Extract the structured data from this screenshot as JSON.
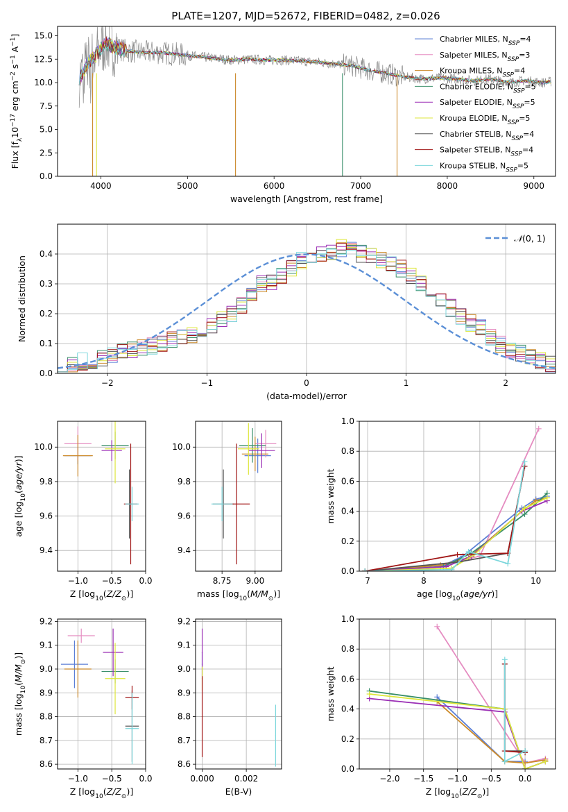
{
  "title": "PLATE=1207, MJD=52672, FIBERID=0482, z=0.026",
  "colors": {
    "Chabrier MILES": "#5b7fd6",
    "Salpeter MILES": "#e58cc1",
    "Kroupa MILES": "#cc8a2a",
    "Chabrier ELODIE": "#3a8f6a",
    "Salpeter ELODIE": "#9b2fb5",
    "Kroupa ELODIE": "#dde63a",
    "Chabrier STELIB": "#555555",
    "Salpeter STELIB": "#a01515",
    "Kroupa STELIB": "#7dd7dc",
    "Data": "#888888",
    "Normal": "#5b8fd6"
  },
  "chart_data": [
    {
      "id": "spectrum",
      "type": "line",
      "xlabel": "wavelength [Angstrom, rest frame]",
      "ylabel": "Flux [f_λ 10^-17 erg cm^-2 s^-1 A^-1]",
      "xlim": [
        3500,
        9250
      ],
      "ylim": [
        0,
        16
      ],
      "xticks": [
        4000,
        5000,
        6000,
        7000,
        8000,
        9000
      ],
      "yticks": [
        0.0,
        2.5,
        5.0,
        7.5,
        10.0,
        12.5,
        15.0
      ],
      "x": [
        3750,
        3850,
        3950,
        4050,
        4150,
        4300,
        4500,
        4700,
        4900,
        5100,
        5300,
        5500,
        5700,
        5900,
        6100,
        6300,
        6500,
        6700,
        6900,
        7100,
        7300,
        7500,
        7700,
        7900,
        8100,
        8300,
        8500,
        8700,
        8900,
        9100,
        9200
      ],
      "model_y": [
        10.5,
        12.0,
        13.0,
        14.2,
        13.8,
        13.4,
        13.2,
        13.2,
        13.0,
        12.8,
        12.6,
        12.4,
        12.5,
        12.4,
        12.4,
        12.3,
        12.2,
        12.0,
        11.8,
        11.3,
        11.0,
        10.6,
        10.4,
        10.5,
        10.4,
        10.2,
        10.4,
        10.0,
        10.2,
        10.0,
        10.1
      ],
      "legend": [
        {
          "name": "Chabrier MILES, N",
          "sub": "SSP",
          "tail": "=4"
        },
        {
          "name": "Salpeter MILES, N",
          "sub": "SSP",
          "tail": "=3"
        },
        {
          "name": "Kroupa MILES, N",
          "sub": "SSP",
          "tail": "=4"
        },
        {
          "name": "Chabrier ELODIE, N",
          "sub": "SSP",
          "tail": "=5"
        },
        {
          "name": "Salpeter ELODIE, N",
          "sub": "SSP",
          "tail": "=5"
        },
        {
          "name": "Kroupa ELODIE, N",
          "sub": "SSP",
          "tail": "=5"
        },
        {
          "name": "Chabrier STELIB, N",
          "sub": "SSP",
          "tail": "=4"
        },
        {
          "name": "Salpeter STELIB, N",
          "sub": "SSP",
          "tail": "=4"
        },
        {
          "name": "Kroupa STELIB, N",
          "sub": "SSP",
          "tail": "=5"
        }
      ]
    },
    {
      "id": "residuals",
      "type": "bar",
      "xlabel": "(data-model)/error",
      "ylabel": "Normed distribution",
      "xlim": [
        -2.5,
        2.5
      ],
      "ylim": [
        0,
        0.5
      ],
      "xticks": [
        -2,
        -1,
        0,
        1,
        2
      ],
      "yticks": [
        0.0,
        0.1,
        0.2,
        0.3,
        0.4
      ],
      "bin_width": 0.1,
      "bin_start": -2.5,
      "normal_label": "N(0,1)",
      "values": [
        0.02,
        0.03,
        0.04,
        0.04,
        0.05,
        0.06,
        0.07,
        0.08,
        0.09,
        0.09,
        0.1,
        0.11,
        0.12,
        0.13,
        0.14,
        0.16,
        0.18,
        0.2,
        0.23,
        0.27,
        0.3,
        0.31,
        0.33,
        0.35,
        0.38,
        0.39,
        0.4,
        0.41,
        0.42,
        0.42,
        0.4,
        0.39,
        0.38,
        0.37,
        0.35,
        0.33,
        0.3,
        0.27,
        0.25,
        0.22,
        0.19,
        0.17,
        0.15,
        0.12,
        0.1,
        0.08,
        0.07,
        0.06,
        0.04,
        0.03
      ]
    },
    {
      "id": "age_vs_Z",
      "type": "scatter",
      "xlabel": "Z [log10(Z/Z⊙)]",
      "ylabel": "age [log10(age/yr)]",
      "xlim": [
        -1.3,
        0.0
      ],
      "ylim": [
        9.28,
        10.15
      ],
      "xticks": [
        -1.0,
        -0.5,
        0.0
      ],
      "yticks": [
        9.4,
        9.6,
        9.8,
        10.0
      ],
      "points": [
        {
          "s": "Chabrier MILES",
          "x": -1.0,
          "xe": 0.2,
          "y": 9.95,
          "ye": 0.05
        },
        {
          "s": "Salpeter MILES",
          "x": -1.0,
          "xe": 0.2,
          "y": 10.02,
          "ye": 0.1
        },
        {
          "s": "Kroupa MILES",
          "x": -1.0,
          "xe": 0.22,
          "y": 9.95,
          "ye": 0.12
        },
        {
          "s": "Chabrier ELODIE",
          "x": -0.45,
          "xe": 0.2,
          "y": 10.01,
          "ye": 0.08
        },
        {
          "s": "Salpeter ELODIE",
          "x": -0.5,
          "xe": 0.15,
          "y": 9.98,
          "ye": 0.06
        },
        {
          "s": "Kroupa ELODIE",
          "x": -0.45,
          "xe": 0.15,
          "y": 9.99,
          "ye": 0.2
        },
        {
          "s": "Chabrier STELIB",
          "x": -0.24,
          "xe": 0.05,
          "y": 9.67,
          "ye": 0.2
        },
        {
          "s": "Salpeter STELIB",
          "x": -0.22,
          "xe": 0.1,
          "y": 9.67,
          "ye": 0.35
        },
        {
          "s": "Kroupa STELIB",
          "x": -0.2,
          "xe": 0.1,
          "y": 9.67,
          "ye": 0.1
        }
      ]
    },
    {
      "id": "age_vs_mass",
      "type": "scatter",
      "xlabel": "mass [log10(M/M⊙)]",
      "ylabel": "",
      "xlim": [
        8.55,
        9.2
      ],
      "ylim": [
        9.28,
        10.15
      ],
      "xticks": [
        8.75,
        9.0
      ],
      "yticks": [
        9.4,
        9.6,
        9.8,
        10.0
      ],
      "points": [
        {
          "s": "Chabrier MILES",
          "x": 9.02,
          "xe": 0.1,
          "y": 9.95,
          "ye": 0.1
        },
        {
          "s": "Salpeter MILES",
          "x": 9.08,
          "xe": 0.08,
          "y": 10.02,
          "ye": 0.08
        },
        {
          "s": "Kroupa MILES",
          "x": 9.0,
          "xe": 0.1,
          "y": 9.96,
          "ye": 0.1
        },
        {
          "s": "Chabrier ELODIE",
          "x": 8.98,
          "xe": 0.1,
          "y": 10.01,
          "ye": 0.1
        },
        {
          "s": "Salpeter ELODIE",
          "x": 9.05,
          "xe": 0.1,
          "y": 9.98,
          "ye": 0.1
        },
        {
          "s": "Kroupa ELODIE",
          "x": 8.95,
          "xe": 0.08,
          "y": 9.99,
          "ye": 0.15
        },
        {
          "s": "Chabrier STELIB",
          "x": 8.76,
          "xe": 0.08,
          "y": 9.67,
          "ye": 0.2
        },
        {
          "s": "Salpeter STELIB",
          "x": 8.86,
          "xe": 0.1,
          "y": 9.67,
          "ye": 0.35
        },
        {
          "s": "Kroupa STELIB",
          "x": 8.75,
          "xe": 0.08,
          "y": 9.67,
          "ye": 0.1
        }
      ]
    },
    {
      "id": "mass_weight_vs_age",
      "type": "line",
      "xlabel": "age [log10(age/yr)]",
      "ylabel": "mass weight",
      "xlim": [
        6.85,
        10.35
      ],
      "ylim": [
        0,
        1
      ],
      "xticks": [
        7,
        8,
        9,
        10
      ],
      "yticks": [
        0.0,
        0.2,
        0.4,
        0.6,
        0.8,
        1.0
      ],
      "series": [
        {
          "s": "Chabrier MILES",
          "x": [
            6.95,
            8.3,
            8.7,
            9.75,
            10.0,
            10.2
          ],
          "y": [
            0.0,
            0.03,
            0.1,
            0.42,
            0.48,
            0.5
          ]
        },
        {
          "s": "Salpeter MILES",
          "x": [
            6.95,
            8.3,
            9.0,
            10.05
          ],
          "y": [
            0.0,
            0.04,
            0.1,
            0.95
          ]
        },
        {
          "s": "Kroupa MILES",
          "x": [
            6.95,
            8.3,
            8.8,
            9.75,
            10.0,
            10.2
          ],
          "y": [
            0.0,
            0.04,
            0.09,
            0.4,
            0.47,
            0.49
          ]
        },
        {
          "s": "Chabrier ELODIE",
          "x": [
            6.95,
            8.35,
            8.85,
            9.8,
            10.2
          ],
          "y": [
            0.0,
            0.03,
            0.12,
            0.38,
            0.52
          ]
        },
        {
          "s": "Salpeter ELODIE",
          "x": [
            6.95,
            8.4,
            8.85,
            9.75,
            10.2
          ],
          "y": [
            0.0,
            0.03,
            0.1,
            0.4,
            0.47
          ]
        },
        {
          "s": "Kroupa ELODIE",
          "x": [
            6.95,
            8.5,
            8.9,
            9.8,
            10.2
          ],
          "y": [
            0.0,
            0.02,
            0.11,
            0.42,
            0.49
          ]
        },
        {
          "s": "Chabrier STELIB",
          "x": [
            6.95,
            8.6,
            9.5,
            9.8
          ],
          "y": [
            0.0,
            0.06,
            0.12,
            0.7
          ]
        },
        {
          "s": "Salpeter STELIB",
          "x": [
            6.95,
            8.6,
            9.5,
            9.8
          ],
          "y": [
            0.0,
            0.11,
            0.12,
            0.7
          ]
        },
        {
          "s": "Kroupa STELIB",
          "x": [
            6.95,
            8.5,
            8.8,
            9.5,
            9.8
          ],
          "y": [
            0.0,
            0.01,
            0.13,
            0.05,
            0.73
          ]
        }
      ]
    },
    {
      "id": "mass_vs_Z",
      "type": "scatter",
      "xlabel": "Z [log10(Z/Z⊙)]",
      "ylabel": "mass [log10(M/M⊙)]",
      "xlim": [
        -1.3,
        0.0
      ],
      "ylim": [
        8.58,
        9.21
      ],
      "xticks": [
        -1.0,
        -0.5,
        0.0
      ],
      "yticks": [
        8.6,
        8.7,
        8.8,
        8.9,
        9.0,
        9.1,
        9.2
      ],
      "points": [
        {
          "s": "Chabrier MILES",
          "x": -1.05,
          "xe": 0.2,
          "y": 9.02,
          "ye": 0.1
        },
        {
          "s": "Salpeter MILES",
          "x": -0.95,
          "xe": 0.2,
          "y": 9.14,
          "ye": 0.03
        },
        {
          "s": "Kroupa MILES",
          "x": -1.0,
          "xe": 0.2,
          "y": 9.0,
          "ye": 0.12
        },
        {
          "s": "Chabrier ELODIE",
          "x": -0.45,
          "xe": 0.2,
          "y": 8.99,
          "ye": 0.05
        },
        {
          "s": "Salpeter ELODIE",
          "x": -0.48,
          "xe": 0.15,
          "y": 9.07,
          "ye": 0.1
        },
        {
          "s": "Kroupa ELODIE",
          "x": -0.45,
          "xe": 0.15,
          "y": 8.96,
          "ye": 0.15
        },
        {
          "s": "Chabrier STELIB",
          "x": -0.2,
          "xe": 0.1,
          "y": 8.76,
          "ye": 0.15
        },
        {
          "s": "Salpeter STELIB",
          "x": -0.2,
          "xe": 0.1,
          "y": 8.88,
          "ye": 0.05
        },
        {
          "s": "Kroupa STELIB",
          "x": -0.2,
          "xe": 0.1,
          "y": 8.75,
          "ye": 0.15
        }
      ]
    },
    {
      "id": "mass_vs_ebv",
      "type": "scatter",
      "xlabel": "E(B-V)",
      "ylabel": "",
      "xlim": [
        -0.0003,
        0.0036
      ],
      "ylim": [
        8.58,
        9.21
      ],
      "xticks": [
        0.0,
        0.002
      ],
      "xtick_labels": [
        "0.000",
        "0.002"
      ],
      "yticks": [
        8.6,
        8.7,
        8.8,
        8.9,
        9.0,
        9.1,
        9.2
      ],
      "points": [
        {
          "s": "Chabrier MILES",
          "x": 0.0,
          "xe": 2e-05,
          "y": 9.02,
          "ye": 0.05
        },
        {
          "s": "Salpeter ELODIE",
          "x": 0.0,
          "xe": 2e-05,
          "y": 9.07,
          "ye": 0.1
        },
        {
          "s": "Kroupa ELODIE",
          "x": 0.0,
          "xe": 2e-05,
          "y": 8.96,
          "ye": 0.05
        },
        {
          "s": "Salpeter STELIB",
          "x": 0.0,
          "xe": 2e-05,
          "y": 8.8,
          "ye": 0.17
        },
        {
          "s": "Kroupa STELIB",
          "x": 0.00333,
          "xe": 2e-05,
          "y": 8.72,
          "ye": 0.13
        }
      ]
    },
    {
      "id": "mass_weight_vs_Z",
      "type": "line",
      "xlabel": "Z [log10(Z/Z⊙)]",
      "ylabel": "mass weight",
      "xlim": [
        -2.45,
        0.45
      ],
      "ylim": [
        0,
        1
      ],
      "xticks": [
        -2.0,
        -1.5,
        -1.0,
        -0.5,
        0.0
      ],
      "yticks": [
        0.0,
        0.2,
        0.4,
        0.6,
        0.8,
        1.0
      ],
      "series": [
        {
          "s": "Chabrier MILES",
          "x": [
            -1.3,
            -0.3,
            0.0
          ],
          "y": [
            0.48,
            0.05,
            0.05
          ]
        },
        {
          "s": "Salpeter MILES",
          "x": [
            -1.3,
            0.0,
            0.3
          ],
          "y": [
            0.95,
            0.04,
            0.07
          ]
        },
        {
          "s": "Kroupa MILES",
          "x": [
            -1.3,
            -0.3,
            0.0,
            0.3
          ],
          "y": [
            0.45,
            0.05,
            0.04,
            0.06
          ]
        },
        {
          "s": "Chabrier ELODIE",
          "x": [
            -2.3,
            -0.3,
            0.0,
            0.3
          ],
          "y": [
            0.52,
            0.4,
            0.0,
            0.05
          ]
        },
        {
          "s": "Salpeter ELODIE",
          "x": [
            -2.3,
            -0.3,
            0.0,
            0.3
          ],
          "y": [
            0.47,
            0.38,
            0.0,
            0.05
          ]
        },
        {
          "s": "Kroupa ELODIE",
          "x": [
            -2.3,
            -0.3,
            0.0,
            0.3
          ],
          "y": [
            0.5,
            0.4,
            0.0,
            0.05
          ]
        },
        {
          "s": "Chabrier STELIB",
          "x": [
            -0.3,
            -0.3,
            0.0
          ],
          "y": [
            0.7,
            0.12,
            0.12
          ]
        },
        {
          "s": "Salpeter STELIB",
          "x": [
            -0.3,
            -0.3,
            0.0
          ],
          "y": [
            0.7,
            0.12,
            0.11
          ]
        },
        {
          "s": "Kroupa STELIB",
          "x": [
            -0.3,
            -0.3,
            0.0
          ],
          "y": [
            0.73,
            0.05,
            0.12
          ]
        }
      ]
    }
  ]
}
